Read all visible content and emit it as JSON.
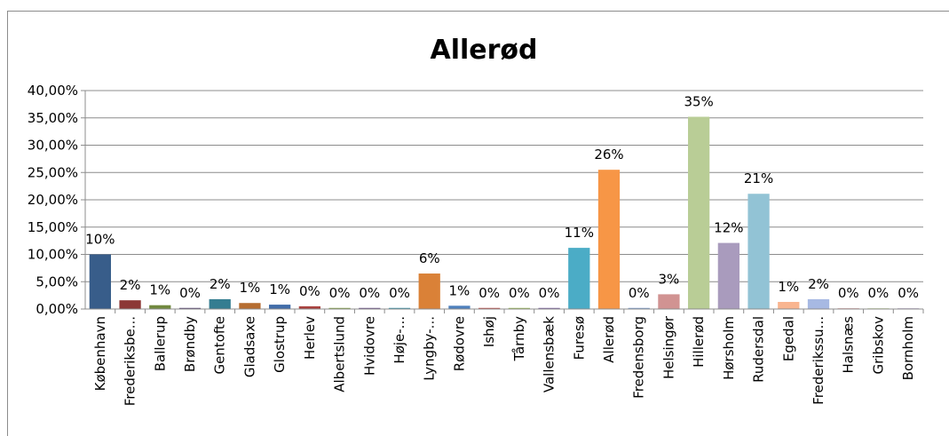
{
  "chart_data": {
    "type": "bar",
    "title": "Allerød",
    "xlabel": "",
    "ylabel": "",
    "ylim": [
      0,
      0.4
    ],
    "grid": true,
    "legend": "none",
    "y_ticks": [
      "0,00%",
      "5,00%",
      "10,00%",
      "15,00%",
      "20,00%",
      "25,00%",
      "30,00%",
      "35,00%",
      "40,00%"
    ],
    "categories": [
      "København",
      "Frederiksbe...",
      "Ballerup",
      "Brøndby",
      "Gentofte",
      "Gladsaxe",
      "Glostrup",
      "Herlev",
      "Albertslund",
      "Hvidovre",
      "Høje-...",
      "Lyngby-...",
      "Rødovre",
      "Ishøj",
      "Tårnby",
      "Vallensbæk",
      "Furesø",
      "Allerød",
      "Fredensborg",
      "Helsingør",
      "Hillerød",
      "Hørsholm",
      "Rudersdal",
      "Egedal",
      "Frederikssu...",
      "Halsnæs",
      "Gribskov",
      "Bornholm"
    ],
    "values": [
      0.1,
      0.016,
      0.007,
      0.002,
      0.018,
      0.011,
      0.008,
      0.005,
      0.002,
      0.002,
      0.002,
      0.065,
      0.006,
      0.002,
      0.002,
      0.002,
      0.112,
      0.255,
      0.002,
      0.027,
      0.352,
      0.121,
      0.211,
      0.013,
      0.018,
      0.001,
      0.001,
      0.001
    ],
    "data_labels": [
      "10%",
      "2%",
      "1%",
      "0%",
      "2%",
      "1%",
      "1%",
      "0%",
      "0%",
      "0%",
      "0%",
      "6%",
      "1%",
      "0%",
      "0%",
      "0%",
      "11%",
      "26%",
      "0%",
      "3%",
      "35%",
      "12%",
      "21%",
      "1%",
      "2%",
      "0%",
      "0%",
      "0%"
    ],
    "colors": [
      "#385d8a",
      "#8c3836",
      "#71893f",
      "#5c4776",
      "#357d91",
      "#b66d31",
      "#426da9",
      "#a9423f",
      "#86a44a",
      "#6e548d",
      "#3d96ae",
      "#da8137",
      "#4f81bd",
      "#c0504d",
      "#9bbb59",
      "#8064a2",
      "#4bacc6",
      "#f79646",
      "#7f9fcf",
      "#d19392",
      "#b9cd96",
      "#a99bbd",
      "#92c3d5",
      "#f9b590",
      "#a7b9e3",
      "#e6b9b8",
      "#d7e4bd",
      "#ccc1da"
    ]
  }
}
